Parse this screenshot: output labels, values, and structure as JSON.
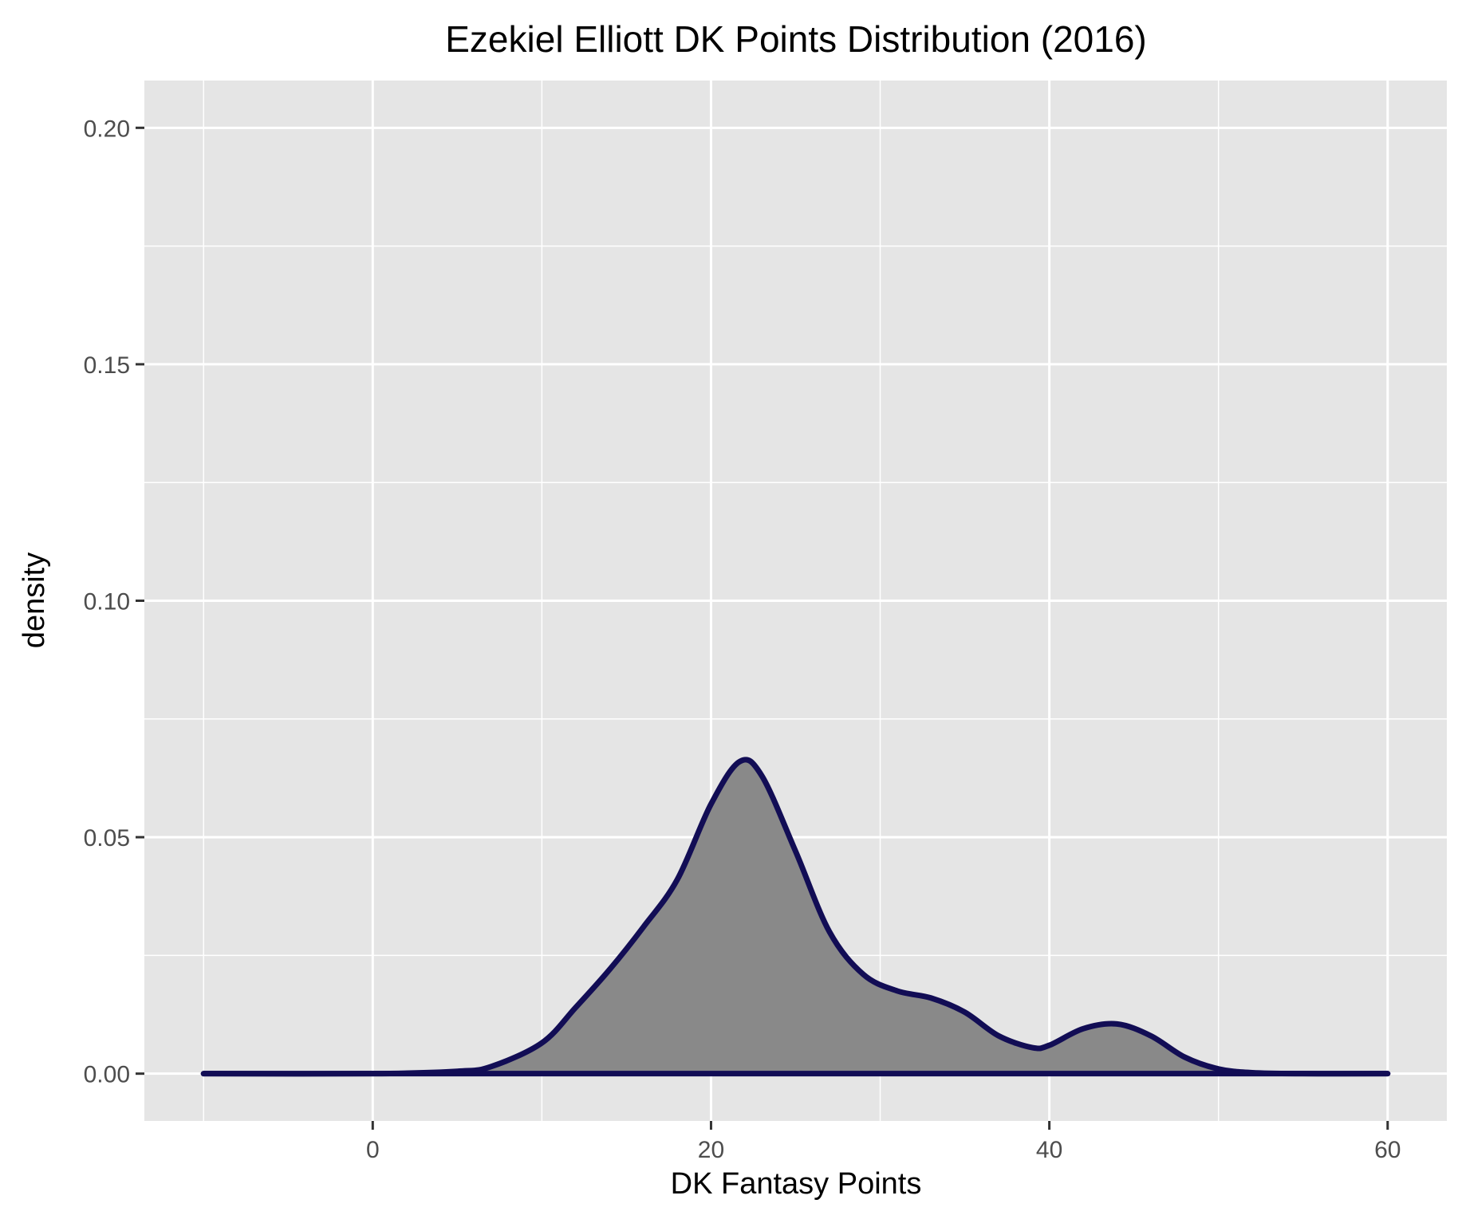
{
  "chart_data": {
    "type": "area",
    "title": "Ezekiel Elliott DK Points Distribution (2016)",
    "xlabel": "DK Fantasy Points",
    "ylabel": "density",
    "xlim": [
      -13.5,
      63.5
    ],
    "ylim": [
      -0.01,
      0.21
    ],
    "x_ticks": [
      0,
      20,
      40,
      60
    ],
    "x_tick_labels": [
      "0",
      "20",
      "40",
      "60"
    ],
    "y_ticks": [
      0.0,
      0.05,
      0.1,
      0.15,
      0.2
    ],
    "y_tick_labels": [
      "0.00",
      "0.05",
      "0.10",
      "0.15",
      "0.20"
    ],
    "grid": true,
    "legend": "none",
    "colors": {
      "panel_background": "#e5e5e5",
      "grid_line": "#ffffff",
      "fill": "#898989",
      "line": "#120d55",
      "tick_label": "#4d4d4d"
    },
    "series": [
      {
        "x": [
          -10,
          0,
          5,
          7,
          10,
          12,
          14,
          16,
          18,
          20,
          21.7,
          23,
          25,
          27,
          29,
          31,
          33,
          35,
          37,
          39,
          40,
          42,
          44,
          46,
          48,
          50,
          52,
          55,
          60
        ],
        "values": [
          0,
          0,
          0.0005,
          0.0015,
          0.0065,
          0.014,
          0.022,
          0.031,
          0.041,
          0.057,
          0.066,
          0.063,
          0.047,
          0.03,
          0.021,
          0.0175,
          0.016,
          0.013,
          0.008,
          0.0055,
          0.006,
          0.0095,
          0.0105,
          0.008,
          0.0035,
          0.001,
          0.0002,
          0,
          0
        ]
      }
    ]
  }
}
